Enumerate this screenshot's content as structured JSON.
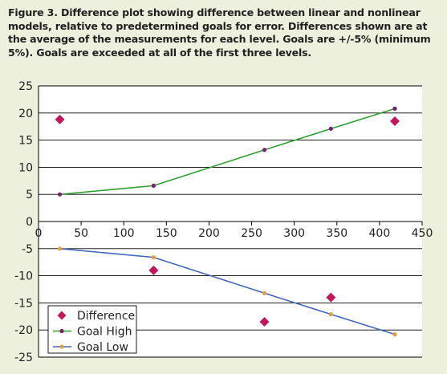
{
  "figure": {
    "caption": "Figure 3. Difference plot showing difference between linear and nonlinear models, relative to predetermined goals for error. Differences shown are at the average of the measurements for each level.  Goals are +/-5% (minimum 5%). Goals are exceeded at all of the first three levels."
  },
  "colors": {
    "background": "#ecf0dd",
    "plot_background": "#ffffff",
    "difference": "#c2185b",
    "goal_high_line": "#2e9e2e",
    "goal_high_marker": "#7a1f6e",
    "goal_low_line": "#3f66b8",
    "goal_low_marker": "#e0a040"
  },
  "chart_data": {
    "type": "scatter",
    "title": "",
    "xlabel": "",
    "ylabel": "",
    "xlim": [
      0,
      450
    ],
    "ylim": [
      -25,
      25
    ],
    "x_ticks": [
      "0",
      "50",
      "100",
      "150",
      "200",
      "250",
      "300",
      "350",
      "400",
      "450"
    ],
    "y_ticks": [
      "25",
      "20",
      "15",
      "10",
      "5",
      "0",
      "-5",
      "-10",
      "-15",
      "-20",
      "-25"
    ],
    "grid": "horizontal",
    "legend_position": "bottom-left",
    "series": [
      {
        "name": "Difference",
        "kind": "markers",
        "marker": "diamond",
        "points": [
          [
            25,
            18.8
          ],
          [
            135,
            -9
          ],
          [
            265,
            -18.5
          ],
          [
            343,
            -14
          ],
          [
            418,
            18.5
          ]
        ]
      },
      {
        "name": "Goal High",
        "kind": "line-markers",
        "marker": "circle",
        "points": [
          [
            25,
            5
          ],
          [
            135,
            6.6
          ],
          [
            265,
            13.2
          ],
          [
            343,
            17.1
          ],
          [
            418,
            20.8
          ]
        ]
      },
      {
        "name": "Goal Low",
        "kind": "line-markers",
        "marker": "circle",
        "points": [
          [
            25,
            -5
          ],
          [
            135,
            -6.6
          ],
          [
            265,
            -13.2
          ],
          [
            343,
            -17.1
          ],
          [
            418,
            -20.8
          ]
        ]
      }
    ]
  }
}
